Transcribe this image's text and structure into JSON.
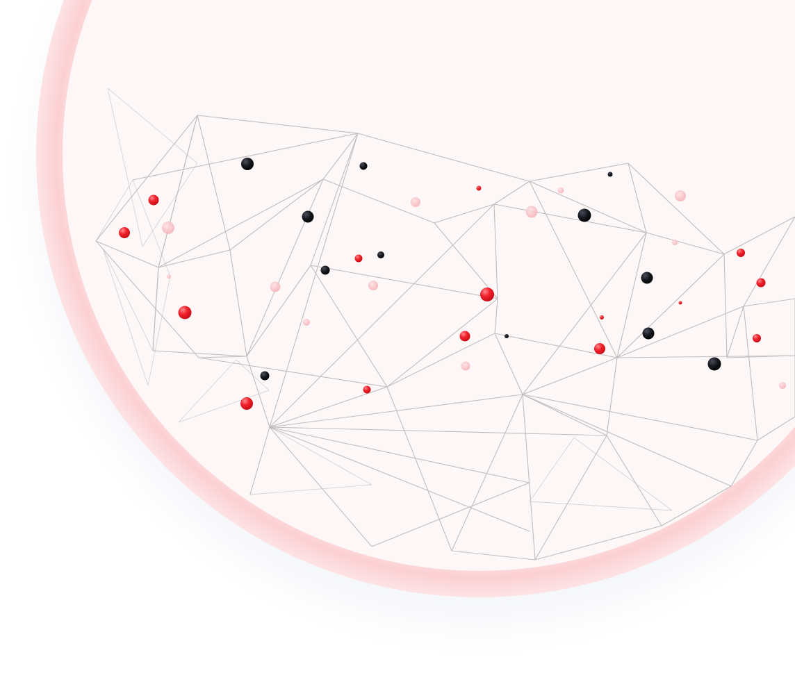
{
  "scene": {
    "kind": "decorative network illustration",
    "colors": {
      "background": "#ffffff",
      "halo": "#fdd6d8",
      "disc": "#fdf8f7",
      "edge": "#bdbdbd",
      "node_red": "#ee1c26",
      "node_black": "#111318",
      "node_pink": "#f7b3ba"
    }
  }
}
